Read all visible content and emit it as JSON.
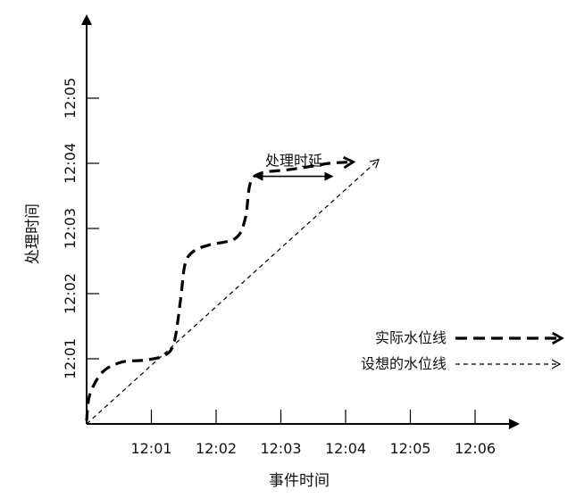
{
  "chart_data": {
    "type": "line",
    "x_axis": {
      "label": "事件时间",
      "ticks": [
        "12:01",
        "12:02",
        "12:03",
        "12:04",
        "12:05",
        "12:06"
      ],
      "range_minutes": [
        0,
        6.6
      ]
    },
    "y_axis": {
      "label": "处理时间",
      "ticks": [
        "12:01",
        "12:02",
        "12:03",
        "12:04",
        "12:05"
      ],
      "range_minutes": [
        0,
        6.0
      ]
    },
    "grid": false,
    "series": [
      {
        "name": "实际水位线",
        "style": "dashed-thick",
        "color": "#000000",
        "points": [
          [
            0.0,
            0.05
          ],
          [
            0.05,
            0.45
          ],
          [
            0.25,
            0.8
          ],
          [
            0.55,
            0.95
          ],
          [
            0.9,
            0.98
          ],
          [
            1.2,
            1.05
          ],
          [
            1.35,
            1.25
          ],
          [
            1.45,
            1.9
          ],
          [
            1.52,
            2.45
          ],
          [
            1.65,
            2.65
          ],
          [
            1.9,
            2.75
          ],
          [
            2.3,
            2.85
          ],
          [
            2.45,
            3.15
          ],
          [
            2.53,
            3.7
          ],
          [
            2.7,
            3.85
          ],
          [
            3.1,
            3.9
          ],
          [
            3.45,
            3.95
          ],
          [
            3.75,
            4.0
          ],
          [
            4.1,
            4.02
          ]
        ]
      },
      {
        "name": "设想的水位线",
        "style": "dashed-thin",
        "color": "#000000",
        "points": [
          [
            0.0,
            0.0
          ],
          [
            4.5,
            4.05
          ]
        ]
      }
    ],
    "annotations": [
      {
        "text": "处理时延",
        "type": "double-arrow",
        "x_from": 2.6,
        "x_to": 3.8,
        "y": 3.8
      }
    ],
    "legend": {
      "position": "bottom-right"
    }
  }
}
